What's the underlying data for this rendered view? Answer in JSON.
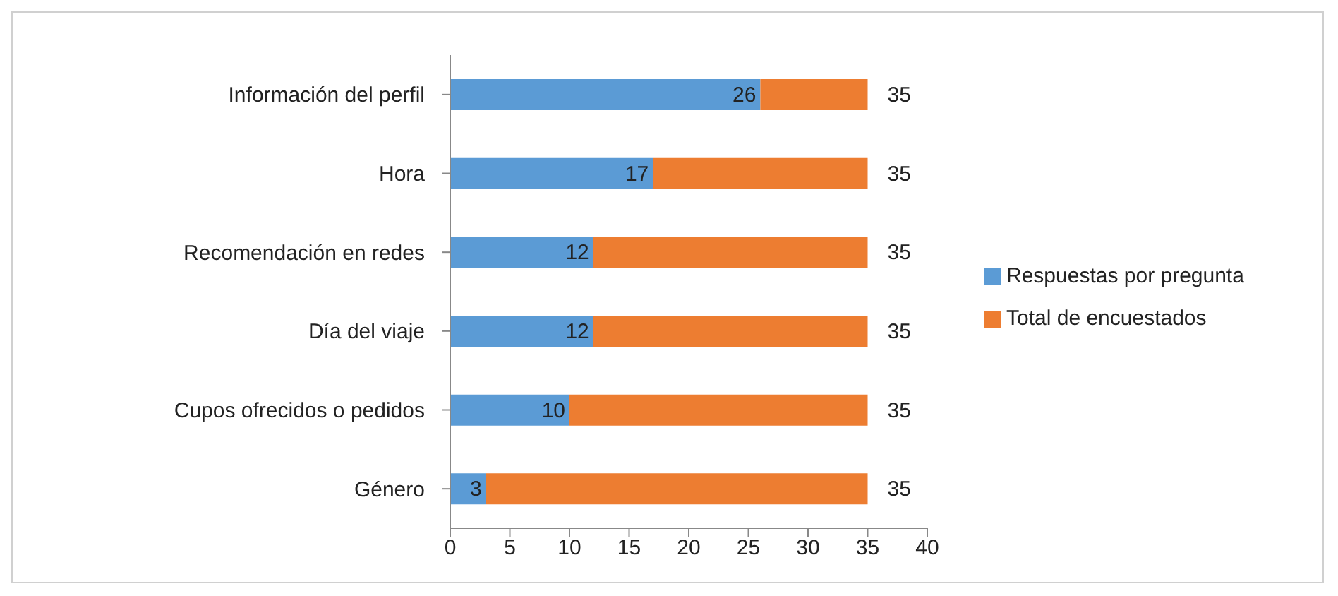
{
  "chart_data": {
    "type": "bar",
    "orientation": "horizontal",
    "stacked": true,
    "categories": [
      "Información del perfil",
      "Hora",
      "Recomendación en redes",
      "Día del viaje",
      "Cupos ofrecidos o pedidos",
      "Género"
    ],
    "series": [
      {
        "name": "Respuestas por pregunta",
        "color": "#5b9bd5",
        "values": [
          26,
          17,
          12,
          12,
          10,
          3
        ],
        "value_labels": [
          "26",
          "17",
          "12",
          "12",
          "10",
          "3"
        ]
      },
      {
        "name": "Total de encuestados",
        "color": "#ed7d31",
        "values": [
          9,
          18,
          23,
          23,
          25,
          32
        ]
      }
    ],
    "totals": [
      "35",
      "35",
      "35",
      "35",
      "35",
      "35"
    ],
    "xlim": [
      0,
      40
    ],
    "xticks": [
      0,
      5,
      10,
      15,
      20,
      25,
      30,
      35,
      40
    ],
    "grid": false,
    "legend": "right"
  }
}
